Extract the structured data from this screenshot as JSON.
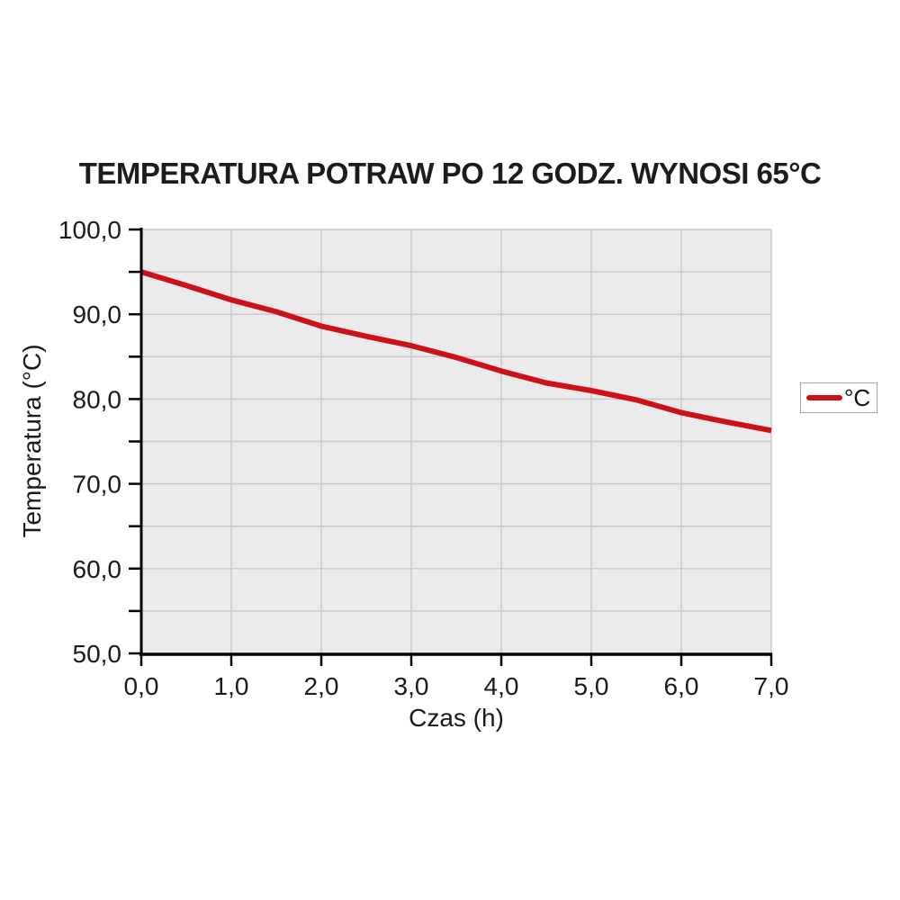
{
  "chart_data": {
    "type": "line",
    "title": "TEMPERATURA POTRAW PO 12 GODZ. WYNOSI 65°C",
    "xlabel": "Czas (h)",
    "ylabel": "Temperatura (°C)",
    "xlim": [
      0,
      7
    ],
    "ylim": [
      50,
      100
    ],
    "x_major_step": 1,
    "y_major_step": 10,
    "y_minor_step": 5,
    "grid": true,
    "legend_position": "right",
    "decimal_separator": ",",
    "xtick_labels": [
      "0,0",
      "1,0",
      "2,0",
      "3,0",
      "4,0",
      "5,0",
      "6,0",
      "7,0"
    ],
    "ytick_labels": [
      "50,0",
      "60,0",
      "70,0",
      "80,0",
      "90,0",
      "100,0"
    ],
    "series": [
      {
        "name": "°C",
        "color": "#cc1118",
        "x": [
          0,
          0.5,
          1,
          1.5,
          2,
          2.5,
          3,
          3.5,
          4,
          4.5,
          5,
          5.5,
          6,
          6.5,
          7
        ],
        "values": [
          95.0,
          93.4,
          91.7,
          90.3,
          88.6,
          87.4,
          86.3,
          84.9,
          83.3,
          81.9,
          81.0,
          79.9,
          78.4,
          77.3,
          76.3
        ]
      }
    ]
  },
  "colors": {
    "line_red": "#cc1118",
    "plot_background": "#ebebeb",
    "gridline": "#c8c8c8",
    "axis": "#000000",
    "legend_border": "#a8a8a8",
    "title_text": "#1c1c1c"
  }
}
